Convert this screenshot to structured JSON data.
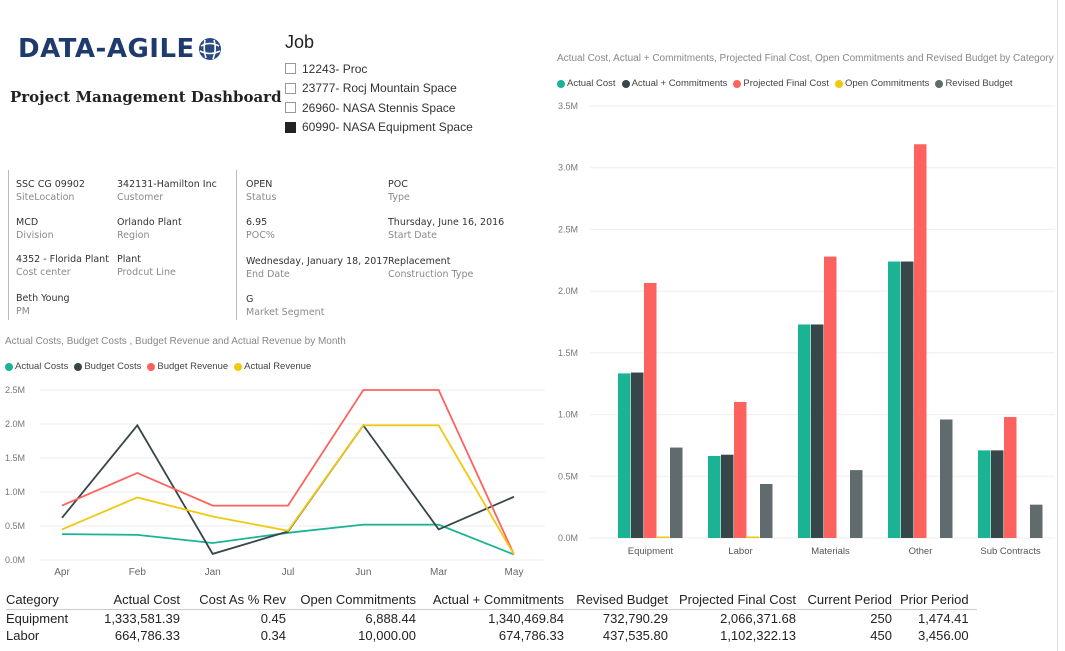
{
  "logo_text": "DATA-AGILE",
  "dashboard_title": "Project Management Dashboard",
  "job": {
    "title": "Job",
    "items": [
      {
        "label": "12243- Proc",
        "checked": false
      },
      {
        "label": "23777- Rocj Mountain Space",
        "checked": false
      },
      {
        "label": "26960- NASA Stennis Space",
        "checked": false
      },
      {
        "label": "60990- NASA Equipment Space",
        "checked": true
      }
    ]
  },
  "info": {
    "site_location": {
      "value": "SSC CG 09902",
      "label": "SiteLocation"
    },
    "customer": {
      "value": "342131-Hamilton Inc",
      "label": "Customer"
    },
    "division": {
      "value": "MCD",
      "label": "Division"
    },
    "region": {
      "value": "Orlando Plant",
      "label": "Region"
    },
    "cost_center": {
      "value": "4352 - Florida Plant",
      "label": "Cost center"
    },
    "product_line": {
      "value": "Plant",
      "label": "Prodcut Line"
    },
    "pm": {
      "value": "Beth Young",
      "label": "PM"
    },
    "status": {
      "value": "OPEN",
      "label": "Status"
    },
    "poc_pct": {
      "value": "6.95",
      "label": "POC%"
    },
    "end_date": {
      "value": "Wednesday, January 18, 2017",
      "label": "End Date"
    },
    "market_segment": {
      "value": "G",
      "label": "Market Segment"
    },
    "type": {
      "value": "POC",
      "label": "Type"
    },
    "start_date": {
      "value": "Thursday, June 16, 2016",
      "label": "Start Date"
    },
    "construction_type": {
      "value": "Replacement",
      "label": "Construction Type"
    }
  },
  "colors": {
    "teal": "#1ab394",
    "dark": "#374649",
    "red": "#fd625e",
    "yellow": "#f2c80f",
    "gray": "#5f6b6d"
  },
  "line_chart": {
    "title": "Actual Costs, Budget Costs , Budget Revenue and Actual Revenue by Month",
    "legend": [
      "Actual Costs",
      "Budget Costs",
      "Budget Revenue",
      "Actual Revenue"
    ],
    "y_ticks": [
      "0.0M",
      "0.5M",
      "1.0M",
      "1.5M",
      "2.0M",
      "2.5M"
    ],
    "chart_data": {
      "type": "line",
      "categories": [
        "Apr",
        "Feb",
        "Jan",
        "Jul",
        "Jun",
        "Mar",
        "May"
      ],
      "ylim": [
        0,
        2500000
      ],
      "series": [
        {
          "name": "Actual Costs",
          "values": [
            380000,
            370000,
            250000,
            400000,
            520000,
            520000,
            80000
          ]
        },
        {
          "name": "Budget Costs",
          "values": [
            620000,
            1980000,
            90000,
            420000,
            1980000,
            450000,
            930000
          ]
        },
        {
          "name": "Budget Revenue",
          "values": [
            800000,
            1280000,
            800000,
            800000,
            2500000,
            2500000,
            80000
          ]
        },
        {
          "name": "Actual Revenue",
          "values": [
            450000,
            920000,
            640000,
            430000,
            1980000,
            1980000,
            80000
          ]
        }
      ]
    }
  },
  "bar_chart": {
    "title": "Actual Cost, Actual + Commitments, Projected Final Cost, Open Commitments and Revised Budget by Category",
    "legend": [
      "Actual Cost",
      "Actual + Commitments",
      "Projected Final Cost",
      "Open Commitments",
      "Revised Budget"
    ],
    "y_ticks": [
      "0.0M",
      "0.5M",
      "1.0M",
      "1.5M",
      "2.0M",
      "2.5M",
      "3.0M",
      "3.5M"
    ],
    "chart_data": {
      "type": "bar",
      "categories": [
        "Equipment",
        "Labor",
        "Materials",
        "Other",
        "Sub Contracts"
      ],
      "ylim": [
        0,
        3500000
      ],
      "series": [
        {
          "name": "Actual Cost",
          "values": [
            1333581,
            664786,
            1730000,
            2240000,
            710000
          ]
        },
        {
          "name": "Actual + Commitments",
          "values": [
            1340470,
            674786,
            1730000,
            2240000,
            710000
          ]
        },
        {
          "name": "Projected Final Cost",
          "values": [
            2066372,
            1102322,
            2280000,
            3190000,
            980000
          ]
        },
        {
          "name": "Open Commitments",
          "values": [
            6888,
            10000,
            0,
            0,
            0
          ]
        },
        {
          "name": "Revised Budget",
          "values": [
            732790,
            437536,
            550000,
            960000,
            270000
          ]
        }
      ]
    }
  },
  "table": {
    "headers": [
      "Category",
      "Actual Cost",
      "Cost As % Rev",
      "Open Commitments",
      "Actual + Commitments",
      "Revised Budget",
      "Projected Final Cost",
      "Current Period",
      "Prior Period"
    ],
    "rows": [
      [
        "Equipment",
        "1,333,581.39",
        "0.45",
        "6,888.44",
        "1,340,469.84",
        "732,790.29",
        "2,066,371.68",
        "250",
        "1,474.41"
      ],
      [
        "Labor",
        "664,786.33",
        "0.34",
        "10,000.00",
        "674,786.33",
        "437,535.80",
        "1,102,322.13",
        "450",
        "3,456.00"
      ]
    ]
  }
}
